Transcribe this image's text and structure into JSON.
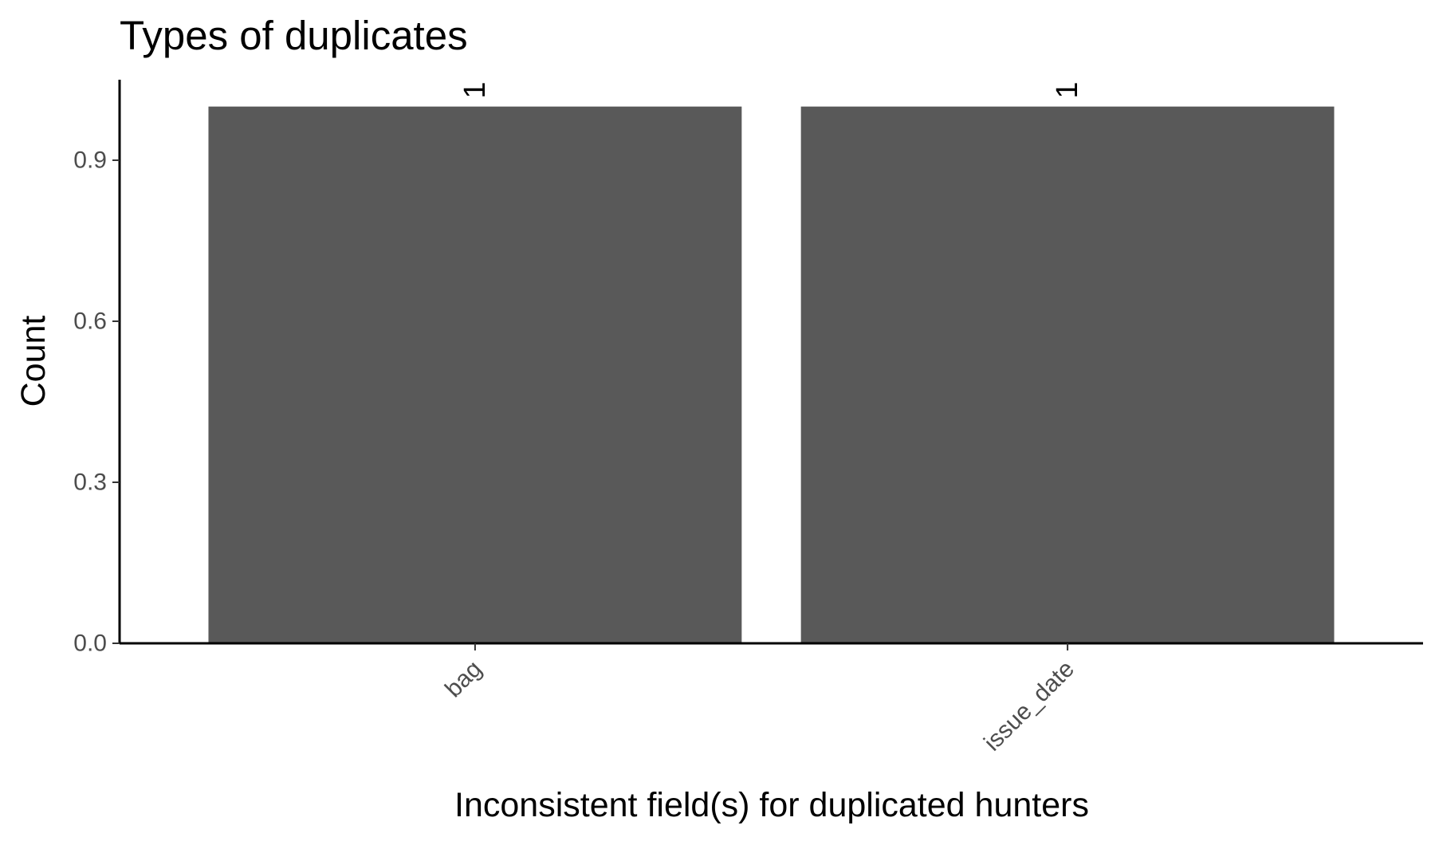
{
  "chart_data": {
    "type": "bar",
    "title": "Types of duplicates",
    "xlabel": "Inconsistent field(s) for duplicated hunters",
    "ylabel": "Count",
    "categories": [
      "bag",
      "issue_date"
    ],
    "values": [
      1,
      1
    ],
    "data_labels": [
      "1",
      "1"
    ],
    "ylim": [
      0,
      1.05
    ],
    "yticks": [
      0.0,
      0.3,
      0.6,
      0.9
    ],
    "ytick_labels": [
      "0.0",
      "0.3",
      "0.6",
      "0.9"
    ],
    "grid": false,
    "legend": "none",
    "bar_color": "#595959"
  }
}
